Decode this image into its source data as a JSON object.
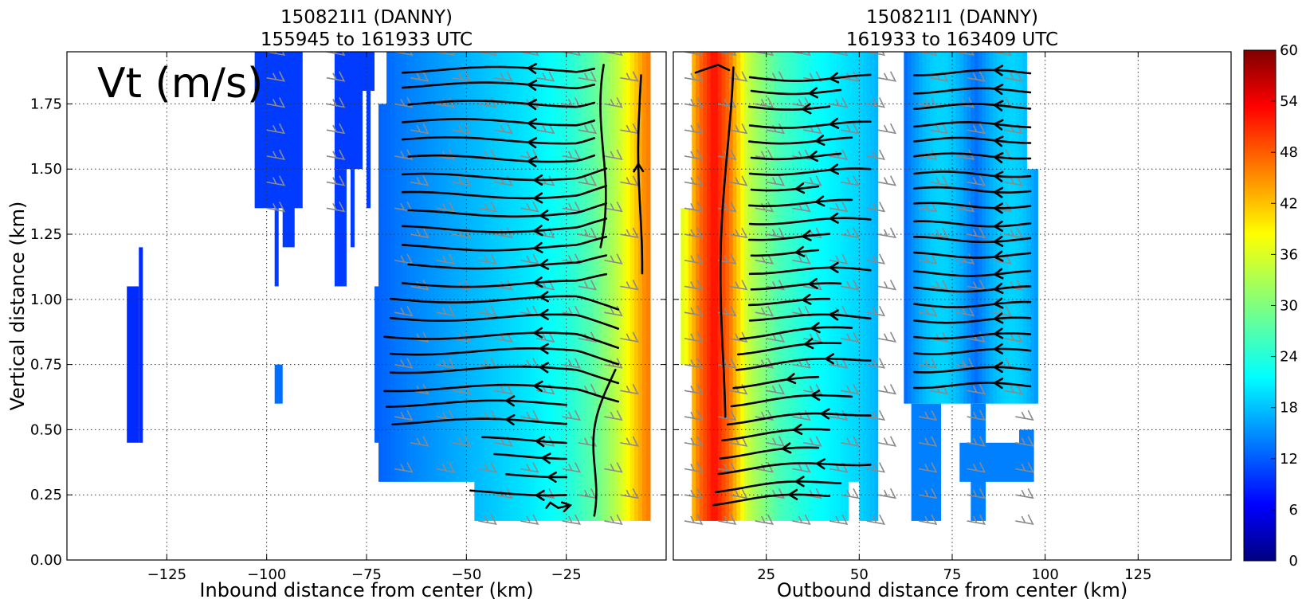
{
  "chart_data": [
    {
      "type": "heatmap",
      "title": "150821I1 (DANNY)\n155945 to 161933 UTC",
      "title_lines": [
        "150821I1 (DANNY)",
        "155945 to 161933 UTC"
      ],
      "xlabel": "Inbound distance from center (km)",
      "ylabel": "Vertical distance (km)",
      "xlim": [
        -150,
        0
      ],
      "ylim": [
        0,
        1.95
      ],
      "xticks": [
        -125,
        -100,
        -75,
        -50,
        -25
      ],
      "xtick_labels": [
        "−125",
        "−100",
        "−75",
        "−50",
        "−25"
      ],
      "yticks": [
        0,
        0.25,
        0.5,
        0.75,
        1.0,
        1.25,
        1.5,
        1.75
      ],
      "ytick_labels": [
        "0.00",
        "0.25",
        "0.50",
        "0.75",
        "1.00",
        "1.25",
        "1.50",
        "1.75"
      ],
      "grid": true,
      "annotation": "Vt (m/s)",
      "field_blocks": [
        {
          "x": [
            -135,
            -132
          ],
          "y": [
            0.45,
            1.05
          ],
          "value": 10
        },
        {
          "x": [
            -132,
            -131
          ],
          "y": [
            0.45,
            1.2
          ],
          "value": 10
        },
        {
          "x": [
            -103,
            -91
          ],
          "y": [
            1.35,
            1.95
          ],
          "value": 11
        },
        {
          "x": [
            -96,
            -93
          ],
          "y": [
            1.2,
            1.5
          ],
          "value": 11
        },
        {
          "x": [
            -98,
            -97
          ],
          "y": [
            1.05,
            1.35
          ],
          "value": 11
        },
        {
          "x": [
            -98,
            -96
          ],
          "y": [
            0.6,
            0.75
          ],
          "value": 14
        },
        {
          "x": [
            -83,
            -76
          ],
          "y": [
            1.5,
            1.95
          ],
          "value": 11
        },
        {
          "x": [
            -83,
            -80
          ],
          "y": [
            1.05,
            1.5
          ],
          "value": 11
        },
        {
          "x": [
            -79,
            -78
          ],
          "y": [
            1.2,
            1.5
          ],
          "value": 11
        },
        {
          "x": [
            -76,
            -73
          ],
          "y": [
            1.8,
            1.95
          ],
          "value": 11
        },
        {
          "x": [
            -75,
            -74
          ],
          "y": [
            1.35,
            1.95
          ],
          "value": 11
        }
      ],
      "field_profile_x": [
        -73,
        -65,
        -55,
        -45,
        -35,
        -25,
        -18,
        -12,
        -8,
        -5
      ],
      "field_profile_value": [
        13,
        15,
        17,
        19,
        21,
        24,
        28,
        34,
        40,
        45
      ],
      "contour_levels": [
        0,
        6,
        12,
        18,
        24,
        30,
        36,
        42,
        48,
        54,
        60
      ]
    },
    {
      "type": "heatmap",
      "title": "150821I1 (DANNY)\n161933 to 163409 UTC",
      "title_lines": [
        "150821I1 (DANNY)",
        "161933 to 163409 UTC"
      ],
      "xlabel": "Outbound distance from center (km)",
      "ylabel": "",
      "xlim": [
        0,
        150
      ],
      "ylim": [
        0,
        1.95
      ],
      "xticks": [
        25,
        50,
        75,
        100,
        125
      ],
      "xtick_labels": [
        "25",
        "50",
        "75",
        "100",
        "125"
      ],
      "grid": true,
      "field_profile_x": [
        3,
        7,
        11,
        15,
        20,
        28,
        38,
        50,
        55
      ],
      "field_profile_value": [
        36,
        46,
        52,
        46,
        34,
        27,
        23,
        20,
        18
      ],
      "second_band": {
        "x": [
          62,
          98
        ],
        "value": 16
      },
      "contour_levels": [
        0,
        6,
        12,
        18,
        24,
        30,
        36,
        42,
        48,
        54,
        60
      ]
    }
  ],
  "colorbar": {
    "ticks": [
      0,
      6,
      12,
      18,
      24,
      30,
      36,
      42,
      48,
      54,
      60
    ],
    "tick_labels": [
      "0",
      "6",
      "12",
      "18",
      "24",
      "30",
      "36",
      "42",
      "48",
      "54",
      "60"
    ],
    "colormap": "jet"
  },
  "colors": {
    "stream": "#000000",
    "barb": "#8a8a8a",
    "grid": "#333333"
  }
}
